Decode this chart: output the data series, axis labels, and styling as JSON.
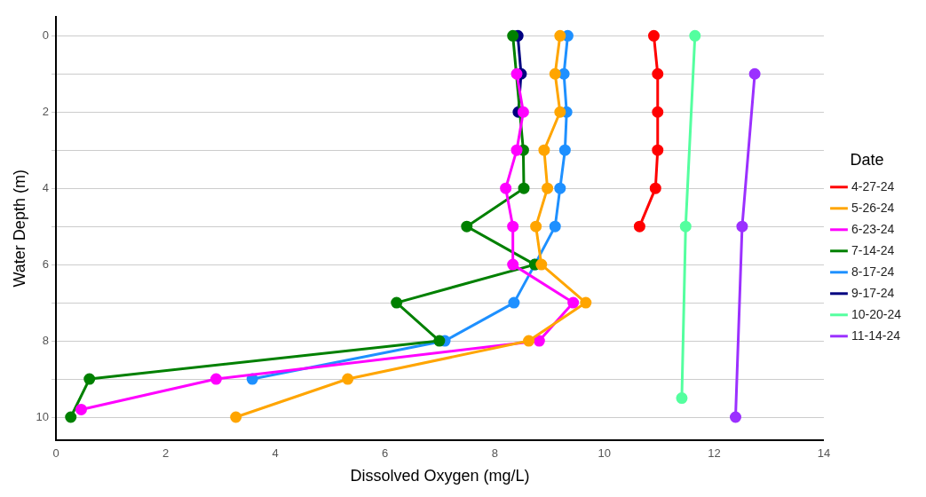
{
  "chart_data": {
    "type": "line",
    "xlabel": "Dissolved Oxygen (mg/L)",
    "ylabel": "Water Depth (m)",
    "legend_title": "Date",
    "legend": "right",
    "grid": "y",
    "marker": "circle",
    "line_style": "solid",
    "xlim": [
      0,
      14
    ],
    "xticks": [
      0,
      2,
      4,
      6,
      8,
      10,
      12,
      14
    ],
    "ylim": [
      10.6,
      -0.5
    ],
    "yticks": [
      0,
      {
        "value": 1,
        "label": null
      },
      2,
      {
        "value": 3,
        "label": null
      },
      4,
      {
        "value": 5,
        "label": null
      },
      6,
      {
        "value": 7,
        "label": null
      },
      8,
      {
        "value": 9,
        "label": null
      },
      10
    ],
    "series": [
      {
        "name": "4-27-24",
        "color": "#ff0000",
        "x": [
          10.9,
          10.97,
          10.97,
          10.97,
          10.93,
          10.64
        ],
        "values": [
          0,
          1,
          2,
          3,
          4,
          5
        ]
      },
      {
        "name": "5-26-24",
        "color": "#ffa500",
        "x": [
          9.19,
          9.1,
          9.19,
          8.9,
          8.96,
          8.75,
          8.85,
          9.66,
          8.62,
          5.32,
          3.28
        ],
        "values": [
          0,
          1,
          2,
          3,
          4,
          5,
          6,
          7,
          8,
          9,
          10
        ]
      },
      {
        "name": "6-23-24",
        "color": "#ff00ff",
        "x": [
          8.4,
          8.52,
          8.4,
          8.2,
          8.33,
          8.33,
          9.43,
          8.81,
          2.92,
          0.46
        ],
        "values": [
          1,
          2,
          3,
          4,
          5,
          6,
          7,
          8,
          9,
          9.8
        ]
      },
      {
        "name": "7-14-24",
        "color": "#008000",
        "x": [
          8.33,
          8.52,
          8.53,
          7.49,
          8.73,
          6.21,
          6.99,
          0.61,
          0.27
        ],
        "values": [
          0,
          3,
          4,
          5,
          6,
          7,
          8,
          9,
          10
        ]
      },
      {
        "name": "8-17-24",
        "color": "#1e90ff",
        "x": [
          9.33,
          9.26,
          9.31,
          9.28,
          9.19,
          9.1,
          8.73,
          8.35,
          7.09,
          3.58
        ],
        "values": [
          0,
          1,
          2,
          3,
          4,
          5,
          6,
          7,
          8,
          9
        ]
      },
      {
        "name": "9-17-24",
        "color": "#000080",
        "x": [
          8.42,
          8.48,
          8.43
        ],
        "values": [
          0,
          1,
          2
        ]
      },
      {
        "name": "10-20-24",
        "color": "#54ff9f",
        "x": [
          11.65,
          11.48,
          11.41
        ],
        "values": [
          0,
          5,
          9.5
        ]
      },
      {
        "name": "11-14-24",
        "color": "#9b30ff",
        "x": [
          12.74,
          12.51,
          12.39
        ],
        "values": [
          1,
          5,
          10
        ]
      }
    ]
  }
}
